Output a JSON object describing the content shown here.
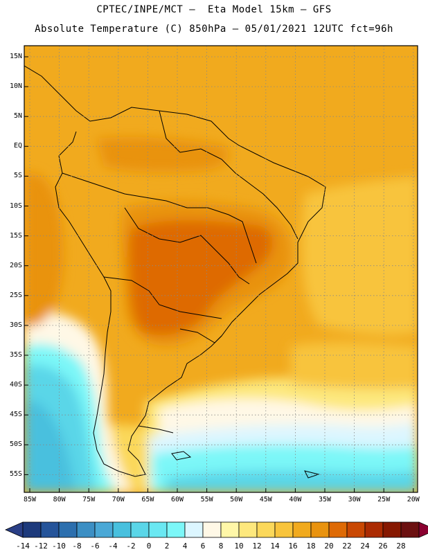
{
  "title_line1": "CPTEC/INPE/MCT –  Eta Model 15km – GFS",
  "title_line2": "Absolute Temperature (C) 850hPa – 05/01/2021 12UTC fct=96h",
  "lat_labels": [
    "15N",
    "10N",
    "5N",
    "EQ",
    "5S",
    "10S",
    "15S",
    "20S",
    "25S",
    "30S",
    "35S",
    "40S",
    "45S",
    "50S",
    "55S"
  ],
  "lon_labels": [
    "85W",
    "80W",
    "75W",
    "70W",
    "65W",
    "60W",
    "55W",
    "50W",
    "45W",
    "40W",
    "35W",
    "30W",
    "25W",
    "20W"
  ],
  "colorbar": {
    "labels": [
      "-14",
      "-12",
      "-10",
      "-8",
      "-6",
      "-4",
      "-2",
      "0",
      "2",
      "4",
      "6",
      "8",
      "10",
      "12",
      "14",
      "16",
      "18",
      "20",
      "22",
      "24",
      "26",
      "28"
    ],
    "colors": [
      "#1d3a7c",
      "#25549a",
      "#2c6fae",
      "#3c8fc4",
      "#4aa8d6",
      "#48c0de",
      "#5ad6e8",
      "#6ae8f2",
      "#7cf7f8",
      "#dcf6ff",
      "#fff8e6",
      "#fff7a8",
      "#fde87d",
      "#fbd85a",
      "#f8c43c",
      "#f1aa1e",
      "#e9930f",
      "#de6a05",
      "#c94803",
      "#ab2b02",
      "#861801",
      "#6b1010"
    ],
    "under_color": "#2a3f86",
    "over_color": "#8a0030"
  }
}
